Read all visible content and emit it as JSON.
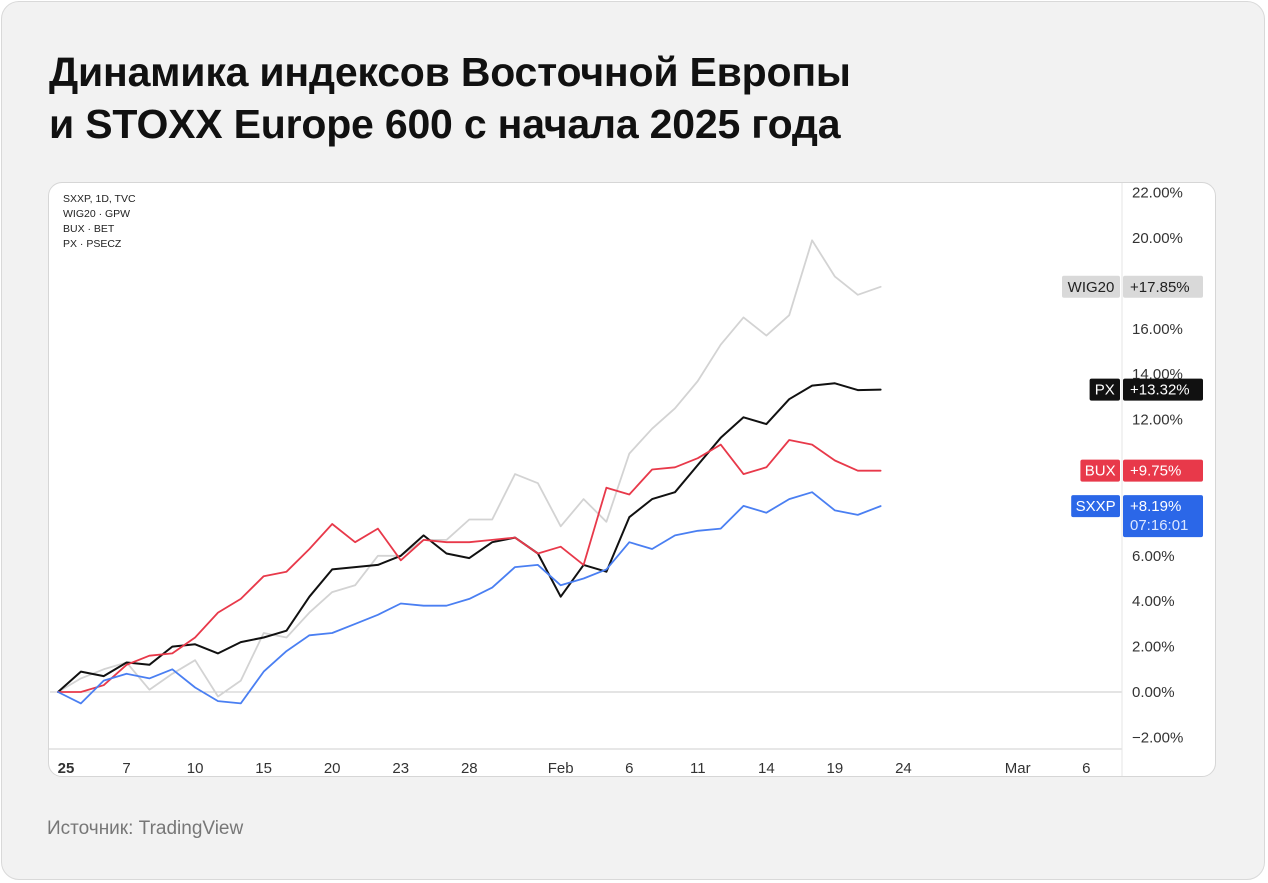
{
  "title": {
    "line1": "Динамика индексов Восточной Европы",
    "line2": "и STOXX Europe 600 с начала 2025 года"
  },
  "source": "Источник: TradingView",
  "legend": [
    "SXXP, 1D, TVC",
    "WIG20 · GPW",
    "BUX · BET",
    "PX · PSECZ"
  ],
  "chart_data": {
    "type": "line",
    "title": "Динамика индексов Восточной Европы и STOXX Europe 600 с начала 2025 года",
    "ylim": [
      -2.8,
      22.0
    ],
    "y_ticks": [
      22,
      20,
      16,
      14,
      12,
      6,
      4,
      2,
      0,
      -2
    ],
    "y_tick_labels": [
      "22.00%",
      "20.00%",
      "16.00%",
      "14.00%",
      "12.00%",
      "6.00%",
      "4.00%",
      "2.00%",
      "0.00%",
      "−2.00%"
    ],
    "x_ticks": [
      {
        "label": "25",
        "d": 0,
        "bold": true
      },
      {
        "label": "7",
        "d": 3
      },
      {
        "label": "10",
        "d": 6
      },
      {
        "label": "15",
        "d": 9
      },
      {
        "label": "20",
        "d": 12
      },
      {
        "label": "23",
        "d": 15
      },
      {
        "label": "28",
        "d": 18
      },
      {
        "label": "Feb",
        "d": 22
      },
      {
        "label": "6",
        "d": 25
      },
      {
        "label": "11",
        "d": 28
      },
      {
        "label": "14",
        "d": 31
      },
      {
        "label": "19",
        "d": 34
      },
      {
        "label": "24",
        "d": 37
      },
      {
        "label": "Mar",
        "d": 42
      },
      {
        "label": "6",
        "d": 45
      }
    ],
    "series": [
      {
        "name": "WIG20",
        "color": "#d3d3d3",
        "last_label": "+17.85%",
        "label_y": 17.85,
        "tag_bg": "#d9d9d9",
        "tag_fg": "#222222",
        "values": [
          0.0,
          0.6,
          1.0,
          1.3,
          0.1,
          0.8,
          1.4,
          -0.2,
          0.5,
          2.6,
          2.4,
          3.5,
          4.4,
          4.7,
          6.0,
          6.0,
          6.7,
          6.7,
          7.6,
          7.6,
          9.6,
          9.2,
          7.3,
          8.5,
          7.5,
          10.5,
          11.6,
          12.5,
          13.7,
          15.3,
          16.5,
          15.7,
          16.6,
          19.9,
          18.3,
          17.5,
          17.85
        ]
      },
      {
        "name": "PX",
        "color": "#111111",
        "last_label": "+13.32%",
        "label_y": 13.32,
        "tag_bg": "#111111",
        "tag_fg": "#ffffff",
        "values": [
          0.0,
          0.9,
          0.7,
          1.3,
          1.2,
          2.0,
          2.1,
          1.7,
          2.2,
          2.4,
          2.7,
          4.2,
          5.4,
          5.5,
          5.6,
          6.0,
          6.9,
          6.1,
          5.9,
          6.6,
          6.8,
          6.1,
          4.2,
          5.6,
          5.3,
          7.7,
          8.5,
          8.8,
          10.0,
          11.2,
          12.1,
          11.8,
          12.9,
          13.5,
          13.6,
          13.3,
          13.32
        ]
      },
      {
        "name": "BUX",
        "color": "#e8394a",
        "last_label": "+9.75%",
        "label_y": 9.75,
        "tag_bg": "#e8394a",
        "tag_fg": "#ffffff",
        "values": [
          0.0,
          0.0,
          0.3,
          1.2,
          1.6,
          1.7,
          2.4,
          3.5,
          4.1,
          5.1,
          5.3,
          6.3,
          7.4,
          6.6,
          7.2,
          5.8,
          6.7,
          6.6,
          6.6,
          6.7,
          6.8,
          6.1,
          6.4,
          5.6,
          9.0,
          8.7,
          9.8,
          9.9,
          10.3,
          10.9,
          9.6,
          9.9,
          11.1,
          10.9,
          10.2,
          9.75,
          9.75
        ]
      },
      {
        "name": "SXXP",
        "color": "#4a7ff2",
        "last_label": "+8.19%",
        "label_y": 8.19,
        "sub_label": "07:16:01",
        "tag_bg": "#2b67e8",
        "tag_fg": "#ffffff",
        "values": [
          0.0,
          -0.5,
          0.5,
          0.8,
          0.6,
          1.0,
          0.2,
          -0.4,
          -0.5,
          0.9,
          1.8,
          2.5,
          2.6,
          3.0,
          3.4,
          3.9,
          3.8,
          3.8,
          4.1,
          4.6,
          5.5,
          5.6,
          4.7,
          5.0,
          5.4,
          6.6,
          6.3,
          6.9,
          7.1,
          7.2,
          8.2,
          7.9,
          8.5,
          8.8,
          8.0,
          7.8,
          8.19
        ]
      }
    ]
  }
}
